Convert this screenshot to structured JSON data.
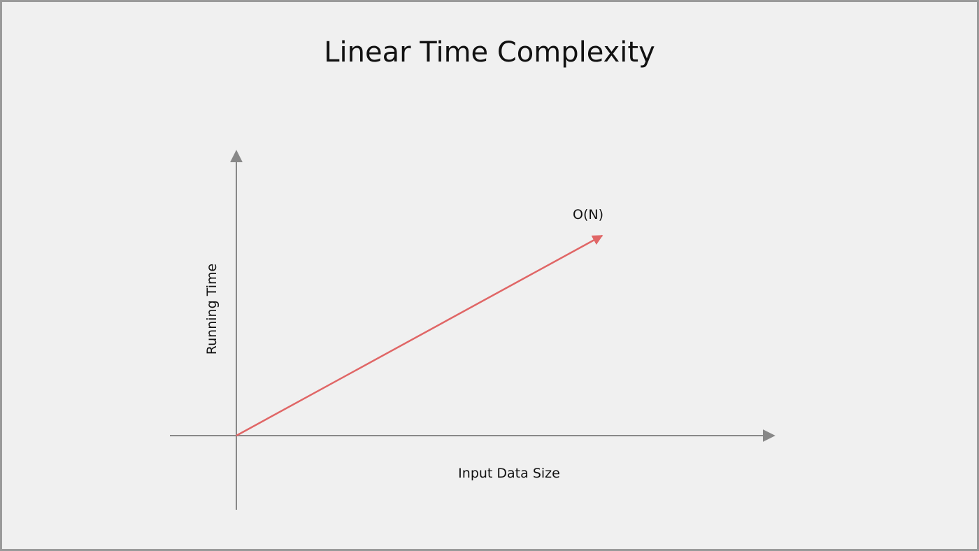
{
  "chart_data": {
    "type": "line",
    "title": "Linear Time Complexity",
    "xlabel": "Input Data Size",
    "ylabel": "Running Time",
    "grid": false,
    "series": [
      {
        "name": "O(N)",
        "x": [
          0,
          1
        ],
        "y": [
          0,
          1
        ],
        "color": "#e06666"
      }
    ],
    "axis_color": "#888888"
  }
}
